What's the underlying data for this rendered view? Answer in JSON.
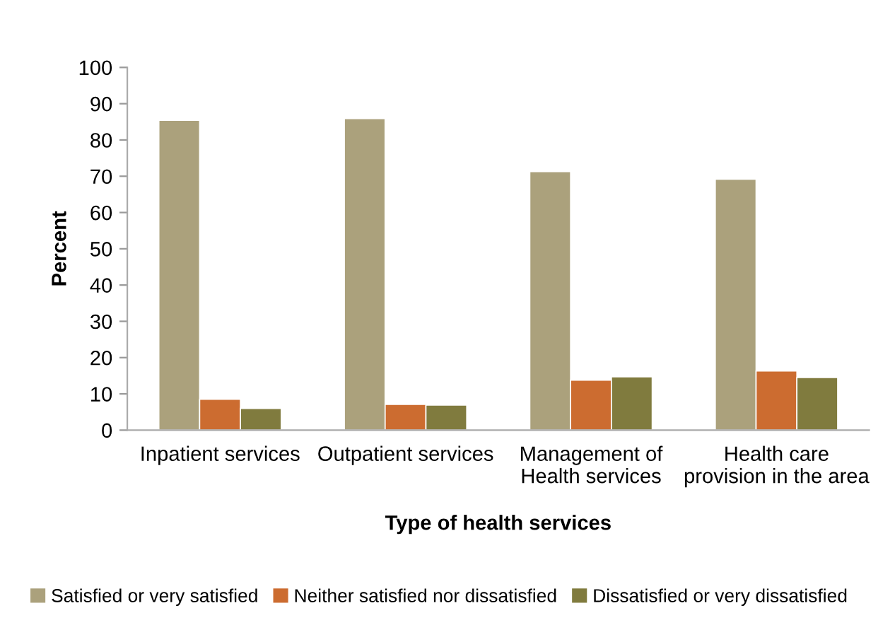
{
  "chart_data": {
    "type": "bar",
    "xlabel": "Type of health services",
    "ylabel": "Percent",
    "categories": [
      "Inpatient services",
      "Outpatient services",
      "Management of\nHealth services",
      "Health care\nprovision in the area"
    ],
    "series": [
      {
        "name": "Satisfied or very satisfied",
        "color": "#aba17c",
        "values": [
          85.4,
          85.9,
          71.3,
          69.2
        ]
      },
      {
        "name": "Neither satisfied nor dissatisfied",
        "color": "#cc6c30",
        "values": [
          8.5,
          7.1,
          13.8,
          16.3
        ]
      },
      {
        "name": "Dissatisfied or very dissatisfied",
        "color": "#807b3e",
        "values": [
          6.0,
          6.9,
          14.7,
          14.5
        ]
      }
    ],
    "ylim": [
      0,
      100
    ],
    "yticks": [
      0,
      10,
      20,
      30,
      40,
      50,
      60,
      70,
      80,
      90,
      100
    ],
    "grid": false,
    "legend": "bottom"
  }
}
